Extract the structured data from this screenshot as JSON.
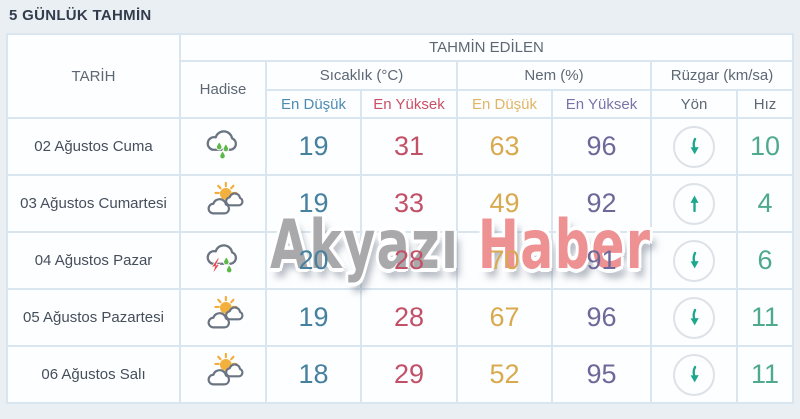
{
  "title": "5 GÜNLÜK TAHMİN",
  "watermark": {
    "part1": "Akyazı",
    "part2": "Haber"
  },
  "table": {
    "header": {
      "date": "TARİH",
      "predicted": "TAHMİN EDİLEN",
      "condition": "Hadise",
      "temperature": "Sıcaklık (°C)",
      "humidity": "Nem (%)",
      "wind": "Rüzgar (km/sa)",
      "temp_min": "En Düşük",
      "temp_max": "En Yüksek",
      "hum_min": "En Düşük",
      "hum_max": "En Yüksek",
      "wind_dir": "Yön",
      "wind_speed": "Hız"
    },
    "rows": [
      {
        "date": "02 Ağustos Cuma",
        "condition_icon": "rain-cloud",
        "temp_min": "19",
        "temp_max": "31",
        "hum_min": "63",
        "hum_max": "96",
        "wind_dir": "down",
        "wind_speed": "10"
      },
      {
        "date": "03 Ağustos Cumartesi",
        "condition_icon": "partly-cloudy",
        "temp_min": "19",
        "temp_max": "33",
        "hum_min": "49",
        "hum_max": "92",
        "wind_dir": "up",
        "wind_speed": "4"
      },
      {
        "date": "04 Ağustos Pazar",
        "condition_icon": "storm-rain",
        "temp_min": "20",
        "temp_max": "28",
        "hum_min": "70",
        "hum_max": "91",
        "wind_dir": "down",
        "wind_speed": "6"
      },
      {
        "date": "05 Ağustos Pazartesi",
        "condition_icon": "partly-cloudy",
        "temp_min": "19",
        "temp_max": "28",
        "hum_min": "67",
        "hum_max": "96",
        "wind_dir": "down",
        "wind_speed": "11"
      },
      {
        "date": "06 Ağustos Salı",
        "condition_icon": "partly-cloudy",
        "temp_min": "18",
        "temp_max": "29",
        "hum_min": "52",
        "hum_max": "95",
        "wind_dir": "down",
        "wind_speed": "11"
      }
    ]
  },
  "colors": {
    "title": "#323c4d",
    "header-text": "#5d6874",
    "date-text": "#454f5b",
    "grid-line": "#d9e6f0",
    "temp-min-label": "#4c8cb3",
    "temp-max-label": "#cb5065",
    "hum-min-label": "#e2b464",
    "hum-max-label": "#7b74a8",
    "temp-min": "#46809f",
    "temp-max": "#c25167",
    "hum-min": "#d9a94e",
    "hum-max": "#6e689a",
    "wind-speed": "#4fa98f",
    "arrow": "#1fa78d",
    "watermark-gray": "#a9a9ab",
    "watermark-red": "#ee9193"
  }
}
